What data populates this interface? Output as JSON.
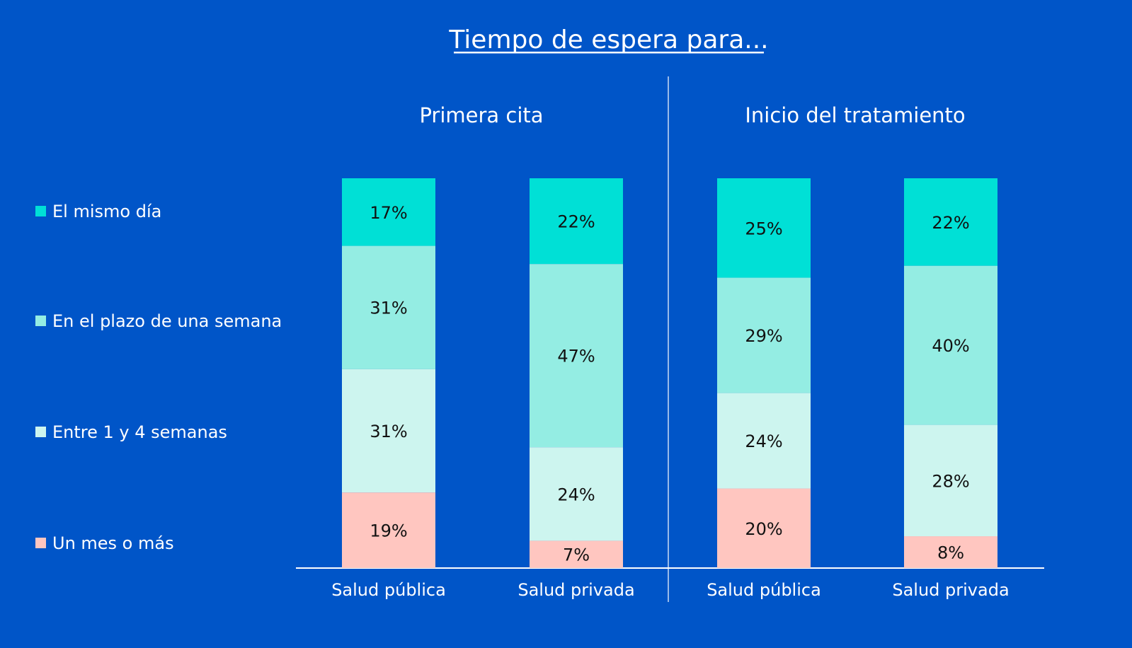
{
  "chart_data": {
    "type": "bar",
    "stacked": true,
    "title": "Tiempo de espera para...",
    "groups": [
      {
        "title": "Primera cita",
        "categories": [
          "Salud pública",
          "Salud privada"
        ]
      },
      {
        "title": "Inicio del tratamiento",
        "categories": [
          "Salud pública",
          "Salud privada"
        ]
      }
    ],
    "series": [
      {
        "name": "El mismo día",
        "color": "#00e0d6",
        "values": [
          17,
          22,
          25,
          22
        ]
      },
      {
        "name": "En el plazo de una semana",
        "color": "#94ede3",
        "values": [
          31,
          47,
          29,
          40
        ]
      },
      {
        "name": "Entre 1 y 4 semanas",
        "color": "#cdf5ef",
        "values": [
          31,
          24,
          24,
          28
        ]
      },
      {
        "name": "Un mes o más",
        "color": "#ffc6c0",
        "values": [
          19,
          7,
          20,
          8
        ]
      }
    ],
    "value_suffix": "%",
    "legend_position": "left",
    "background": "#0055c8"
  }
}
